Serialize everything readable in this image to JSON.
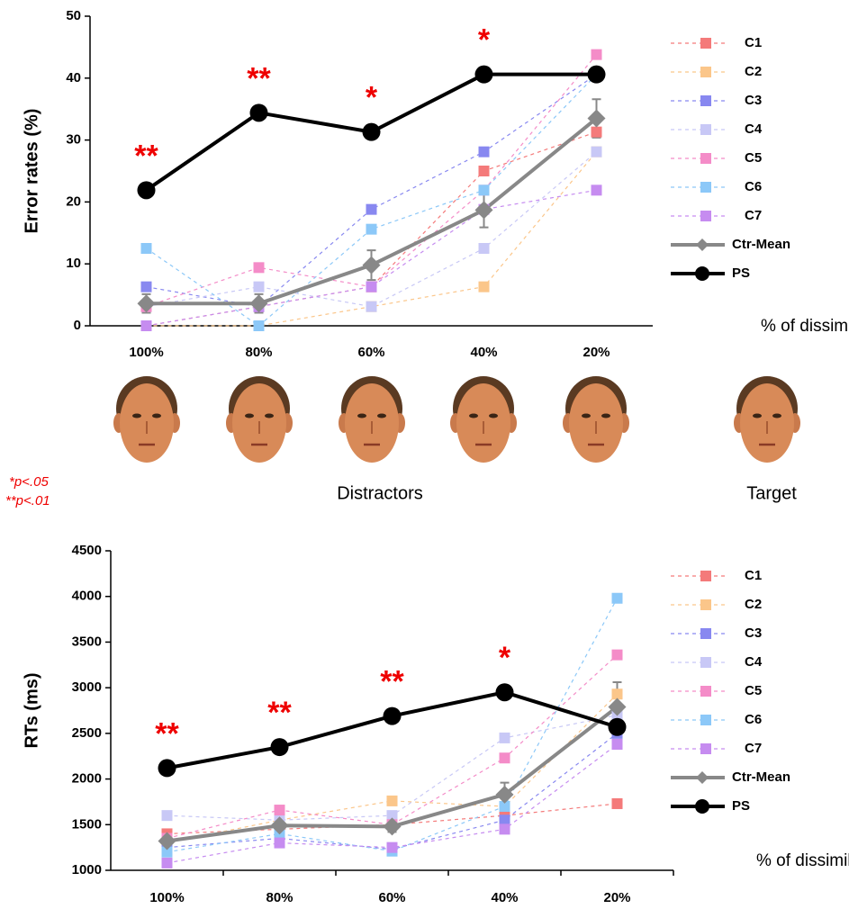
{
  "chart_data": [
    {
      "type": "line",
      "y_label": "Error rates (%)",
      "x_label": "% of dissimilarity",
      "categories": [
        "100%",
        "80%",
        "60%",
        "40%",
        "20%"
      ],
      "ylim": [
        0,
        50
      ],
      "yticks": [
        0,
        10,
        20,
        30,
        40,
        50
      ],
      "significance": [
        "**",
        "**",
        "*",
        "*",
        null
      ],
      "series": [
        {
          "name": "C1",
          "color": "#f47a7a",
          "marker": "square",
          "dashed": true,
          "values": [
            0,
            3.1,
            6.3,
            25,
            31.3
          ]
        },
        {
          "name": "C2",
          "color": "#fbc68a",
          "marker": "square",
          "dashed": true,
          "values": [
            0,
            0,
            3.1,
            6.3,
            28.1
          ]
        },
        {
          "name": "C3",
          "color": "#8888f0",
          "marker": "square",
          "dashed": true,
          "values": [
            6.3,
            3.1,
            18.8,
            28.1,
            40.6
          ]
        },
        {
          "name": "C4",
          "color": "#c8c8f6",
          "marker": "square",
          "dashed": true,
          "values": [
            3.1,
            6.3,
            3.1,
            12.5,
            28.1
          ]
        },
        {
          "name": "C5",
          "color": "#f48cc8",
          "marker": "square",
          "dashed": true,
          "values": [
            3.1,
            9.4,
            6.3,
            21.9,
            43.8
          ]
        },
        {
          "name": "C6",
          "color": "#8cc8f8",
          "marker": "square",
          "dashed": true,
          "values": [
            12.5,
            0,
            15.6,
            21.9,
            40.6
          ]
        },
        {
          "name": "C7",
          "color": "#c68cf0",
          "marker": "square",
          "dashed": true,
          "values": [
            0,
            3.1,
            6.3,
            18.8,
            21.9
          ]
        },
        {
          "name": "Ctr-Mean",
          "color": "#888888",
          "marker": "diamond",
          "dashed": false,
          "values": [
            3.6,
            3.6,
            9.8,
            18.7,
            33.5
          ],
          "errors": [
            1.5,
            1.5,
            2.4,
            2.8,
            3.1
          ]
        },
        {
          "name": "PS",
          "color": "#000000",
          "marker": "circle",
          "dashed": false,
          "values": [
            21.9,
            34.4,
            31.3,
            40.6,
            40.6
          ]
        }
      ]
    },
    {
      "type": "line",
      "y_label": "RTs (ms)",
      "x_label": "% of dissimilarity",
      "categories": [
        "100%",
        "80%",
        "60%",
        "40%",
        "20%"
      ],
      "ylim": [
        1000,
        4500
      ],
      "yticks": [
        1000,
        1500,
        2000,
        2500,
        3000,
        3500,
        4000,
        4500
      ],
      "significance": [
        "**",
        "**",
        "**",
        "*",
        null
      ],
      "series": [
        {
          "name": "C1",
          "color": "#f47a7a",
          "marker": "square",
          "dashed": true,
          "values": [
            1400,
            1450,
            1500,
            1600,
            1730
          ]
        },
        {
          "name": "C2",
          "color": "#fbc68a",
          "marker": "square",
          "dashed": true,
          "values": [
            1300,
            1550,
            1760,
            1700,
            2930
          ]
        },
        {
          "name": "C3",
          "color": "#8888f0",
          "marker": "square",
          "dashed": true,
          "values": [
            1250,
            1350,
            1230,
            1550,
            2500
          ]
        },
        {
          "name": "C4",
          "color": "#c8c8f6",
          "marker": "square",
          "dashed": true,
          "values": [
            1600,
            1550,
            1600,
            2450,
            2700
          ]
        },
        {
          "name": "C5",
          "color": "#f48cc8",
          "marker": "square",
          "dashed": true,
          "values": [
            1350,
            1660,
            1500,
            2230,
            3360
          ]
        },
        {
          "name": "C6",
          "color": "#8cc8f8",
          "marker": "square",
          "dashed": true,
          "values": [
            1200,
            1400,
            1210,
            1700,
            3980
          ]
        },
        {
          "name": "C7",
          "color": "#c68cf0",
          "marker": "square",
          "dashed": true,
          "values": [
            1080,
            1300,
            1250,
            1450,
            2380
          ]
        },
        {
          "name": "Ctr-Mean",
          "color": "#888888",
          "marker": "diamond",
          "dashed": false,
          "values": [
            1320,
            1490,
            1480,
            1830,
            2790
          ],
          "errors": [
            50,
            50,
            60,
            130,
            270
          ]
        },
        {
          "name": "PS",
          "color": "#000000",
          "marker": "circle",
          "dashed": false,
          "values": [
            2120,
            2350,
            2690,
            2950,
            2570
          ]
        }
      ]
    }
  ],
  "figure": {
    "distractors": "Distractors",
    "target": "Target",
    "sig_notes": [
      "*p<.05",
      "**p<.01"
    ]
  }
}
